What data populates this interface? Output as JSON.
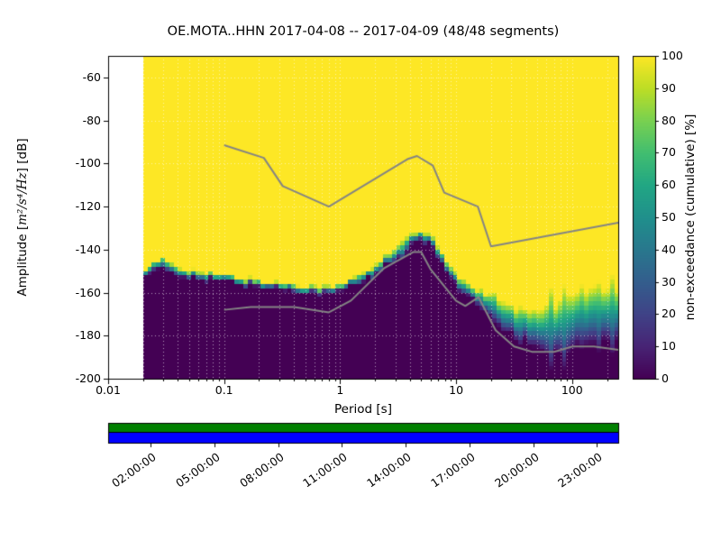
{
  "chart_data": {
    "type": "heatmap",
    "title": "OE.MOTA..HHN   2017-04-08 -- 2017-04-09  (48/48 segments)",
    "xlabel": "Period [s]",
    "ylabel": "Amplitude [m²/s⁴/Hz] [dB]",
    "ylabel_parts": {
      "prefix": "Amplitude [",
      "math": "m²/s⁴/Hz",
      "suffix": "] [dB]"
    },
    "x_scale": "log",
    "xlim": [
      0.01,
      250
    ],
    "ylim": [
      -200,
      -50
    ],
    "x_ticks": {
      "values": [
        0.01,
        0.1,
        1,
        10,
        100
      ],
      "labels": [
        "0.01",
        "0.1",
        "1",
        "10",
        "100"
      ]
    },
    "y_ticks": {
      "values": [
        -200,
        -180,
        -160,
        -140,
        -120,
        -100,
        -80,
        -60
      ],
      "labels": [
        "-200",
        "-180",
        "-160",
        "-140",
        "-120",
        "-100",
        "-80",
        "-60"
      ]
    },
    "grid": "dotted",
    "colorbar": {
      "label": "non-exceedance (cumulative) [%]",
      "min": 0,
      "max": 100,
      "tick_values": [
        0,
        10,
        20,
        30,
        40,
        50,
        60,
        70,
        80,
        90,
        100
      ],
      "tick_labels": [
        "0",
        "10",
        "20",
        "30",
        "40",
        "50",
        "60",
        "70",
        "80",
        "90",
        "100"
      ],
      "colormap": "viridis"
    },
    "data_period_range": [
      0.02,
      250
    ],
    "cumulative_transition": {
      "description": "dB level at each period where cumulative non-exceedance transitions from 0% (below) to 100% (above); spread is transition width in dB",
      "periods": [
        0.02,
        0.03,
        0.04,
        0.06,
        0.08,
        0.1,
        0.15,
        0.25,
        0.4,
        0.6,
        0.8,
        1.0,
        1.5,
        2.0,
        3.0,
        4.0,
        5.0,
        6.0,
        8.0,
        10,
        13,
        16,
        20,
        26,
        35,
        50,
        70,
        100,
        140,
        200,
        250
      ],
      "center_db": [
        -150,
        -147,
        -150,
        -152,
        -153,
        -153.5,
        -155,
        -156.5,
        -157.5,
        -158.5,
        -159,
        -158,
        -153,
        -149,
        -142,
        -136,
        -133.5,
        -136,
        -146,
        -154,
        -160,
        -163,
        -167,
        -171,
        -175,
        -177,
        -176,
        -173,
        -171,
        -170,
        -170
      ],
      "spread_db": [
        4,
        5,
        4,
        3.5,
        3,
        3,
        3,
        3,
        3,
        3,
        3,
        3,
        4,
        4,
        5,
        5,
        5,
        5,
        5,
        5,
        6,
        8,
        12,
        14,
        16,
        20,
        24,
        26,
        26,
        24,
        24
      ]
    },
    "noise_models": {
      "color": "#848484",
      "nhnm": {
        "periods": [
          0.1,
          0.22,
          0.32,
          0.8,
          3.8,
          4.6,
          6.3,
          7.9,
          15.4,
          20,
          250
        ],
        "db": [
          -91.5,
          -97.4,
          -110.5,
          -120,
          -98,
          -96.5,
          -101,
          -113.5,
          -120,
          -138.5,
          -127.5
        ]
      },
      "nlnm": {
        "periods": [
          0.1,
          0.17,
          0.4,
          0.8,
          1.24,
          2.4,
          4.3,
          5.0,
          6.0,
          10.0,
          12.0,
          15.6,
          21.9,
          31.6,
          45.0,
          70.0,
          101.0,
          154.0,
          250.0
        ],
        "db": [
          -168.0,
          -166.7,
          -166.7,
          -169.2,
          -163.7,
          -148.6,
          -141.1,
          -141.1,
          -149.0,
          -163.8,
          -166.2,
          -162.1,
          -177.5,
          -185.0,
          -187.5,
          -187.5,
          -185.0,
          -185.0,
          -186.6
        ]
      }
    },
    "coverage": {
      "segments_used": 48,
      "segments_total": 48,
      "axis_hours": [
        0,
        24
      ],
      "tick_hours": [
        2,
        5,
        8,
        11,
        14,
        17,
        20,
        23
      ],
      "tick_labels": [
        "02:00:00",
        "05:00:00",
        "08:00:00",
        "11:00:00",
        "14:00:00",
        "17:00:00",
        "20:00:00",
        "23:00:00"
      ],
      "data_color": "#008000",
      "extent_color": "#0000ff"
    }
  }
}
